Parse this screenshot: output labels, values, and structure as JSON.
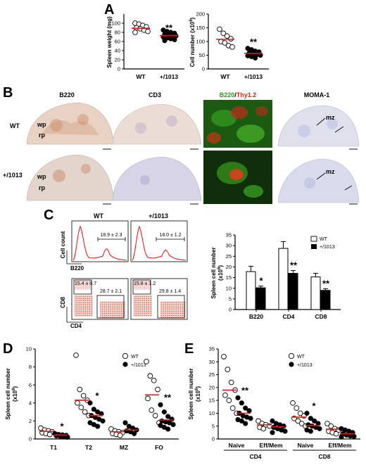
{
  "figure": {
    "panels": {
      "A": "A",
      "B": "B",
      "C": "C",
      "D": "D",
      "E": "E"
    },
    "panel_A": {
      "left": {
        "ylabel": "Spleen weight (mg)",
        "yticks": [
          "0",
          "20",
          "40",
          "60",
          "80",
          "100"
        ],
        "groups": [
          "WT",
          "+/1013"
        ],
        "sig": "**"
      },
      "right": {
        "ylabel": "Cell number (x10",
        "ylabel_sup": "6",
        "ylabel_end": ")",
        "yticks": [
          "0",
          "50",
          "100",
          "150",
          "200"
        ],
        "groups": [
          "WT",
          "+/1013"
        ],
        "sig": "**"
      }
    },
    "panel_B": {
      "cols": [
        "B220",
        "CD3",
        "",
        "MOMA-1"
      ],
      "merge_a": "B220",
      "merge_sep": "/",
      "merge_b": "Thy1.2",
      "rows": [
        "WT",
        "+/1013"
      ],
      "ann": {
        "wp": "wp",
        "rp": "rp",
        "mz": "mz"
      }
    },
    "panel_C": {
      "cols": [
        "WT",
        "+/1013"
      ],
      "hist_pct": [
        "18.9 ± 2.3",
        "18.0 ± 1.2"
      ],
      "hist_ylabel": "Cell count",
      "hist_xlabel": "B220",
      "dot_ylabel": "CD8",
      "dot_xlabel": "CD4",
      "cd8_pct": [
        "15.4 ± 0.7",
        "15.8 ± 1.2"
      ],
      "cd4_pct": [
        "28.7 ± 2.1",
        "29.8 ± 1.4"
      ],
      "bar": {
        "ylabel": "Spleen cell number",
        "ylabel2": "(x10",
        "ylabel2_sup": "6",
        "ylabel2_end": ")",
        "yticks": [
          "0",
          "5",
          "10",
          "15",
          "20",
          "25",
          "30",
          "35"
        ],
        "legend": [
          "WT",
          "+/1013"
        ],
        "categories": [
          "B220",
          "CD4",
          "CD8"
        ],
        "sig": [
          "*",
          "**",
          "**"
        ]
      }
    },
    "panel_D": {
      "ylabel": "Spleen cell number",
      "ylabel2": "(x10",
      "ylabel2_sup": "6",
      "ylabel2_end": ")",
      "yticks": [
        "0",
        "2",
        "4",
        "6",
        "8",
        "10"
      ],
      "legend": [
        "WT",
        "+/1013"
      ],
      "categories": [
        "T1",
        "T2",
        "MZ",
        "FO"
      ],
      "sig": [
        "*",
        "*",
        "",
        "**"
      ]
    },
    "panel_E": {
      "ylabel": "Spleen cell number",
      "ylabel2": "(x10",
      "ylabel2_sup": "6",
      "ylabel2_end": ")",
      "yticks": [
        "0",
        "5",
        "10",
        "15",
        "20",
        "25",
        "30",
        "35"
      ],
      "legend": [
        "WT",
        "+/1013"
      ],
      "categories": [
        "Naive",
        "Eff/Mem",
        "Naive",
        "Eff/Mem"
      ],
      "groups": [
        "CD4",
        "CD8"
      ],
      "sig": [
        "**",
        "",
        "*",
        ""
      ]
    }
  },
  "chart_data": [
    {
      "type": "scatter",
      "ylim": [
        0,
        120
      ],
      "ylabel": "Spleen weight (mg)",
      "series": [
        {
          "name": "WT",
          "values": [
            100,
            98,
            95,
            92,
            90,
            88,
            85,
            82,
            80
          ],
          "mean": 89
        },
        {
          "name": "+/1013",
          "values": [
            85,
            82,
            80,
            78,
            76,
            75,
            73,
            72,
            70,
            68,
            66,
            64,
            62
          ],
          "mean": 73
        }
      ]
    },
    {
      "type": "scatter",
      "ylim": [
        0,
        200
      ],
      "ylabel": "Cell number (x10^6)",
      "series": [
        {
          "name": "WT",
          "values": [
            145,
            130,
            120,
            110,
            100,
            95,
            85,
            80
          ],
          "mean": 108
        },
        {
          "name": "+/1013",
          "values": [
            75,
            70,
            65,
            62,
            58,
            55,
            52,
            50,
            48,
            45,
            40
          ],
          "mean": 57
        }
      ]
    },
    {
      "type": "bar",
      "categories": [
        "B220",
        "CD4",
        "CD8"
      ],
      "ylim": [
        0,
        35
      ],
      "ylabel": "Spleen cell number (x10^6)",
      "series": [
        {
          "name": "WT",
          "values": [
            17.8,
            28.7,
            15.3
          ],
          "err": [
            2.5,
            3.2,
            1.7
          ]
        },
        {
          "name": "+/1013",
          "values": [
            10.2,
            17.0,
            9.0
          ],
          "err": [
            0.8,
            1.3,
            0.8
          ]
        }
      ]
    },
    {
      "type": "scatter",
      "categories": [
        "T1",
        "T2",
        "MZ",
        "FO"
      ],
      "ylim": [
        0,
        10
      ],
      "ylabel": "Spleen cell number (x10^6)",
      "series": [
        {
          "name": "WT",
          "values": [
            [
              1.2,
              1.0,
              0.9,
              0.8,
              0.7,
              0.6,
              0.5
            ],
            [
              9.3,
              5.5,
              4.8,
              4.3,
              4.0,
              3.5,
              3.0,
              2.6
            ],
            [
              1.1,
              0.9,
              0.8,
              0.7,
              0.6,
              0.5,
              0.4
            ],
            [
              8.6,
              7.0,
              6.5,
              5.5,
              4.5,
              3.2,
              2.6,
              1.8
            ]
          ],
          "mean": [
            0.85,
            4.3,
            0.8,
            4.9
          ]
        },
        {
          "name": "+/1013",
          "values": [
            [
              0.6,
              0.5,
              0.45,
              0.4,
              0.35,
              0.3,
              0.25,
              0.2
            ],
            [
              4.0,
              3.3,
              3.0,
              2.8,
              2.6,
              2.4,
              2.2,
              2.0,
              1.8,
              1.6,
              1.4
            ],
            [
              1.8,
              1.4,
              1.2,
              1.0,
              0.9,
              0.8,
              0.6
            ],
            [
              3.8,
              3.0,
              2.5,
              2.2,
              2.0,
              1.9,
              1.8,
              1.6,
              1.5,
              1.3,
              1.1
            ]
          ],
          "mean": [
            0.45,
            2.6,
            1.0,
            2.1
          ]
        }
      ]
    },
    {
      "type": "scatter",
      "categories": [
        "Naive",
        "Eff/Mem",
        "Naive",
        "Eff/Mem"
      ],
      "ylim": [
        0,
        35
      ],
      "ylabel": "Spleen cell number (x10^6)",
      "series": [
        {
          "name": "WT",
          "values": [
            [
              32,
              27,
              22,
              19,
              17,
              15,
              12,
              10
            ],
            [
              7,
              6,
              5.5,
              5,
              4.5,
              4
            ],
            [
              14,
              12,
              10,
              9,
              8,
              7,
              6,
              5
            ],
            [
              6,
              5,
              4,
              3.5,
              3,
              2.5,
              2
            ]
          ],
          "mean": [
            19,
            5.5,
            8.5,
            3.8
          ]
        },
        {
          "name": "+/1013",
          "values": [
            [
              16,
              14,
              12,
              11,
              10,
              9,
              8.5,
              8,
              7.5,
              7,
              6
            ],
            [
              7,
              6,
              5.5,
              5,
              4.5,
              4,
              3.5,
              3,
              2.5
            ],
            [
              10,
              8,
              7,
              6,
              5.5,
              5,
              4.5,
              4,
              3.5,
              3
            ],
            [
              4,
              3.5,
              3,
              2.5,
              2,
              1.5,
              1.2,
              1,
              0.8
            ]
          ],
          "mean": [
            10,
            4.7,
            5.2,
            2.0
          ]
        }
      ]
    }
  ],
  "colors": {
    "mean_line": "#e01818",
    "wt_open": "#ffffff",
    "mut_filled": "#000000",
    "flow": "#e01010",
    "merge_green": "#2a9a1a",
    "merge_red": "#d62a10"
  }
}
